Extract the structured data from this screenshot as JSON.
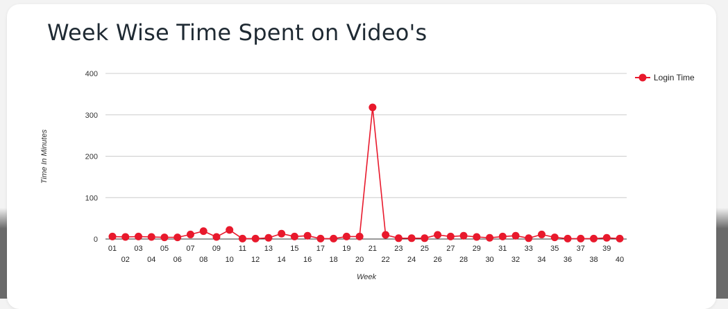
{
  "page": {
    "title": "Week Wise Time Spent on Video's"
  },
  "chart_data": {
    "type": "line",
    "title": "Week Wise Time Spent on Video's",
    "xlabel": "Week",
    "ylabel": "Time In Minutes",
    "ylim": [
      0,
      400
    ],
    "yticks": [
      0,
      100,
      200,
      300,
      400
    ],
    "grid": true,
    "legend_position": "right",
    "categories": [
      "01",
      "02",
      "03",
      "04",
      "05",
      "06",
      "07",
      "08",
      "09",
      "10",
      "11",
      "12",
      "13",
      "14",
      "15",
      "16",
      "17",
      "18",
      "19",
      "20",
      "21",
      "22",
      "23",
      "24",
      "25",
      "26",
      "27",
      "28",
      "29",
      "30",
      "31",
      "32",
      "33",
      "34",
      "35",
      "36",
      "37",
      "38",
      "39",
      "40"
    ],
    "series": [
      {
        "name": "Login Time",
        "color": "#e8192c",
        "values": [
          6,
          5,
          6,
          5,
          4,
          4,
          11,
          19,
          5,
          22,
          1,
          1,
          3,
          13,
          6,
          8,
          1,
          1,
          6,
          6,
          318,
          10,
          2,
          2,
          2,
          10,
          6,
          8,
          5,
          3,
          6,
          8,
          2,
          11,
          4,
          1,
          1,
          1,
          3,
          1
        ]
      }
    ]
  }
}
